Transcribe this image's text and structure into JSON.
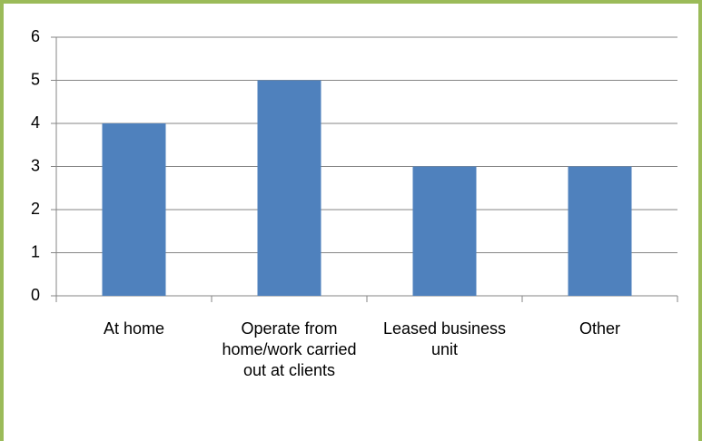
{
  "chart_data": {
    "type": "bar",
    "categories": [
      "At home",
      "Operate from home/work carried out at clients",
      "Leased business unit",
      "Other"
    ],
    "values": [
      4,
      5,
      3,
      3
    ],
    "color": "#4f81bd",
    "ylim": [
      0,
      6
    ],
    "yticks": [
      0,
      1,
      2,
      3,
      4,
      5,
      6
    ],
    "grid": true
  }
}
